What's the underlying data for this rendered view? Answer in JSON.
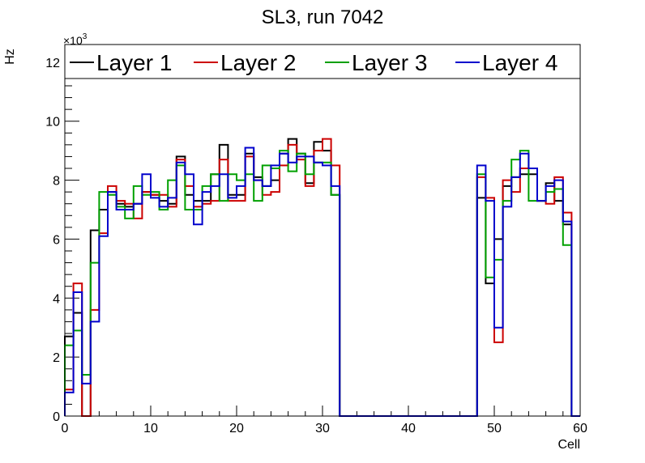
{
  "chart_data": {
    "type": "histogram",
    "title": "SL3, run 7042",
    "xlabel": "Cell",
    "ylabel": "Hz",
    "y_multiplier": "×10",
    "y_multiplier_exponent": "3",
    "xlim": [
      0,
      60
    ],
    "ylim": [
      0,
      12.6
    ],
    "x_ticks": [
      0,
      10,
      20,
      30,
      40,
      50,
      60
    ],
    "x_tick_labels": [
      "0",
      "10",
      "20",
      "30",
      "40",
      "50",
      "60"
    ],
    "y_ticks": [
      0,
      2,
      4,
      6,
      8,
      10,
      12
    ],
    "y_tick_labels": [
      "0",
      "2",
      "4",
      "6",
      "8",
      "10",
      "12"
    ],
    "bin_edges_start": 0,
    "bin_width": 1,
    "grid": false,
    "legend_position": "top",
    "series": [
      {
        "name": "Layer 1",
        "color": "#000000",
        "values": [
          2.7,
          3.5,
          0,
          6.3,
          7.0,
          7.6,
          7.2,
          7.1,
          7.2,
          7.6,
          7.5,
          7.3,
          7.2,
          8.8,
          7.5,
          7.3,
          7.3,
          8.2,
          9.2,
          7.5,
          7.5,
          8.9,
          8.1,
          7.8,
          8.0,
          8.9,
          9.4,
          8.9,
          7.9,
          9.3,
          9.0,
          7.5,
          0,
          0,
          0,
          0,
          0,
          0,
          0,
          0,
          0,
          0,
          0,
          0,
          0,
          0,
          0,
          0,
          7.4,
          4.5,
          6.0,
          7.8,
          8.1,
          8.2,
          8.2,
          7.3,
          7.9,
          7.3,
          6.5,
          0
        ]
      },
      {
        "name": "Layer 2",
        "color": "#cc0000",
        "values": [
          0.9,
          4.5,
          0,
          3.6,
          6.2,
          7.8,
          7.3,
          7.2,
          6.7,
          7.6,
          7.5,
          7.5,
          7.1,
          8.7,
          7.8,
          7.1,
          7.2,
          7.3,
          8.7,
          7.3,
          7.3,
          8.8,
          8.0,
          7.5,
          7.6,
          8.5,
          9.2,
          8.7,
          7.8,
          9.0,
          9.4,
          8.5,
          0,
          0,
          0,
          0,
          0,
          0,
          0,
          0,
          0,
          0,
          0,
          0,
          0,
          0,
          0,
          0,
          8.1,
          7.4,
          2.5,
          8.0,
          7.6,
          8.4,
          8.4,
          7.3,
          7.2,
          8.1,
          6.9,
          0
        ]
      },
      {
        "name": "Layer 3",
        "color": "#00a000",
        "values": [
          2.4,
          2.9,
          1.4,
          5.2,
          7.6,
          7.5,
          7.1,
          6.7,
          7.8,
          7.5,
          7.6,
          7.0,
          8.0,
          8.5,
          7.0,
          7.0,
          7.8,
          8.2,
          7.3,
          8.2,
          8.0,
          8.2,
          7.3,
          8.5,
          8.4,
          9.0,
          8.3,
          8.9,
          8.2,
          8.6,
          8.6,
          7.5,
          0,
          0,
          0,
          0,
          0,
          0,
          0,
          0,
          0,
          0,
          0,
          0,
          0,
          0,
          0,
          0,
          8.2,
          4.7,
          5.3,
          7.3,
          8.7,
          9.0,
          7.3,
          7.3,
          7.6,
          7.7,
          5.8,
          0
        ]
      },
      {
        "name": "Layer 4",
        "color": "#0000cc",
        "values": [
          0.8,
          4.2,
          1.1,
          3.2,
          6.1,
          7.6,
          7.0,
          7.0,
          7.2,
          8.2,
          7.4,
          7.1,
          7.4,
          8.6,
          8.2,
          6.5,
          7.6,
          7.8,
          8.2,
          7.4,
          7.8,
          9.1,
          8.0,
          7.8,
          8.5,
          8.9,
          8.6,
          8.8,
          8.8,
          8.6,
          8.5,
          7.8,
          0,
          0,
          0,
          0,
          0,
          0,
          0,
          0,
          0,
          0,
          0,
          0,
          0,
          0,
          0,
          0,
          8.5,
          7.3,
          3.0,
          7.1,
          8.1,
          8.9,
          8.4,
          7.3,
          7.8,
          8.0,
          6.6,
          0
        ]
      }
    ]
  }
}
